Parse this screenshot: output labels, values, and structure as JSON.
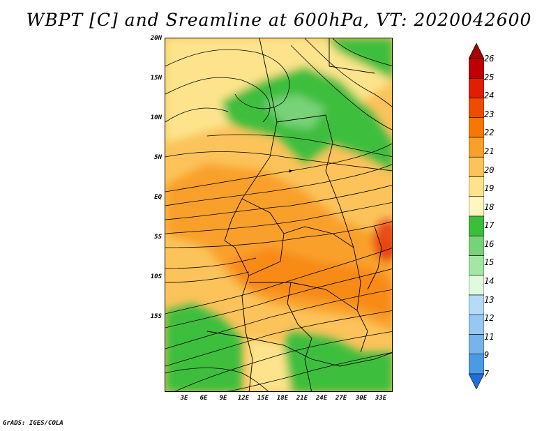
{
  "title": "WBPT [C] and Sreamline at 600hPa, VT: 2020042600",
  "credit": "GrADS: IGES/COLA",
  "axes": {
    "lat_labels": [
      "20N",
      "15N",
      "10N",
      "5N",
      "EQ",
      "5S",
      "10S",
      "15S"
    ],
    "lon_labels": [
      "3E",
      "6E",
      "9E",
      "12E",
      "15E",
      "18E",
      "21E",
      "24E",
      "27E",
      "30E",
      "33E"
    ]
  },
  "colorbar": {
    "levels": [
      "26",
      "25",
      "24",
      "23",
      "22",
      "21",
      "20",
      "19",
      "18",
      "17",
      "16",
      "15",
      "14",
      "13",
      "12",
      "11",
      "9",
      "7"
    ],
    "colors": [
      "#a50000",
      "#c00000",
      "#e11e00",
      "#f04c00",
      "#f77800",
      "#f9a02a",
      "#fbc35a",
      "#fde48c",
      "#fff6c0",
      "#3cbe3c",
      "#78d278",
      "#a4e6a4",
      "#dffadf",
      "#b4dcf8",
      "#96c8f2",
      "#78b4ec",
      "#4b9be4",
      "#1e6edc"
    ]
  }
}
